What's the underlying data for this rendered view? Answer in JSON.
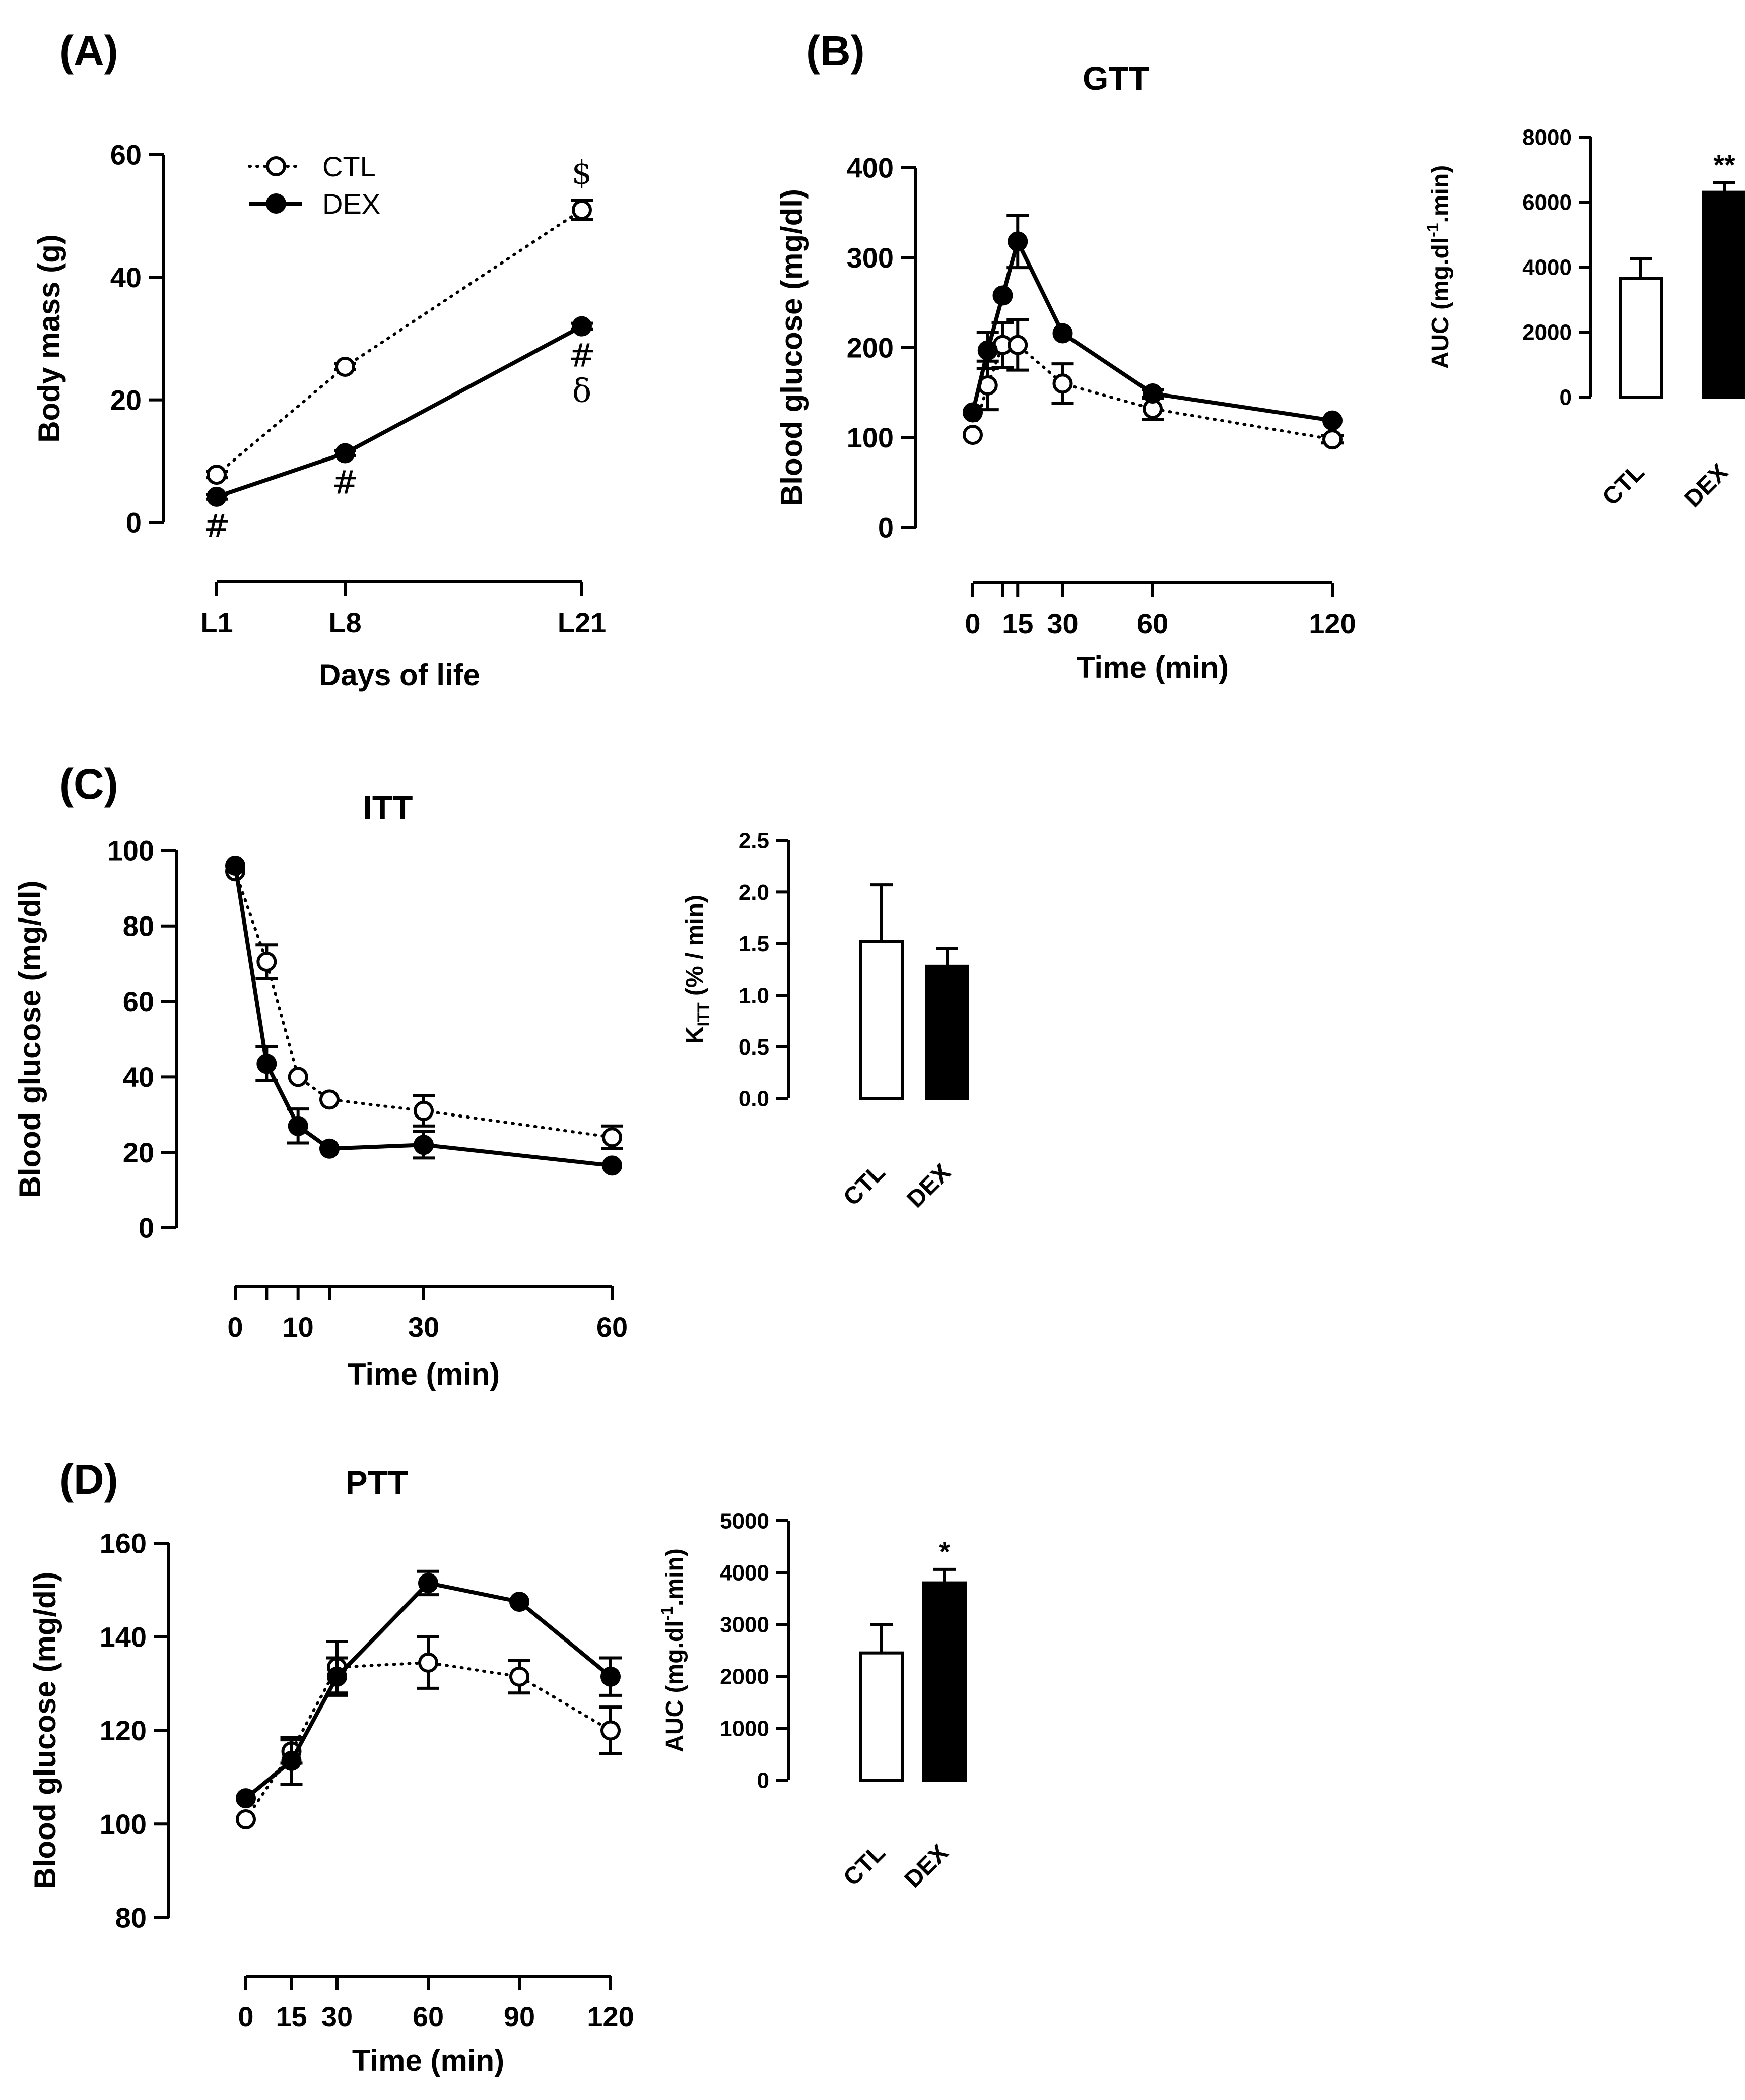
{
  "figure": {
    "legend": {
      "ctl": "CTL",
      "dex": "DEX"
    }
  },
  "chart_data": [
    {
      "panel": "(A)",
      "type": "line",
      "title": "",
      "xlabel": "Days of life",
      "ylabel": "Body mass (g)",
      "categories": [
        "L1",
        "L8",
        "L21"
      ],
      "x": [
        1,
        8,
        21
      ],
      "ylim": [
        0,
        60
      ],
      "yticks": [
        0,
        20,
        40,
        60
      ],
      "legend_position": "top-left",
      "series": [
        {
          "name": "CTL",
          "style": "dotted-open",
          "values": [
            7.8,
            25.4,
            51.0
          ],
          "err": [
            0.5,
            0.5,
            1.6
          ]
        },
        {
          "name": "DEX",
          "style": "solid-filled",
          "values": [
            4.2,
            11.3,
            32.0
          ],
          "err": [
            0.4,
            0.4,
            0.5
          ]
        }
      ],
      "annotations": [
        {
          "x": 1,
          "y": 4.2,
          "text": "#",
          "anchor": "below"
        },
        {
          "x": 8,
          "y": 11.3,
          "text": "#",
          "anchor": "below"
        },
        {
          "x": 21,
          "y": 51.0,
          "text": "$",
          "anchor": "above"
        },
        {
          "x": 21,
          "y": 32.0,
          "text": "#",
          "anchor": "below"
        },
        {
          "x": 21,
          "y": 32.0,
          "text": "δ",
          "anchor": "below2"
        }
      ]
    },
    {
      "panel": "(B)",
      "type": "line",
      "title": "GTT",
      "xlabel": "Time (min)",
      "ylabel": "Blood glucose (mg/dl)",
      "x": [
        0,
        5,
        10,
        15,
        30,
        60,
        120
      ],
      "xtick_labels": [
        "0",
        "15",
        "30",
        "60",
        "120"
      ],
      "xtick_values": [
        0,
        15,
        30,
        60,
        120
      ],
      "xminor_ticks": [
        10
      ],
      "ylim": [
        0,
        400
      ],
      "yticks": [
        0,
        100,
        200,
        300,
        400
      ],
      "series": [
        {
          "name": "CTL",
          "style": "dotted-open",
          "values": [
            103,
            158,
            203,
            203,
            160,
            132,
            98
          ],
          "err": [
            0,
            27,
            25,
            28,
            22,
            12,
            4
          ]
        },
        {
          "name": "DEX",
          "style": "solid-filled",
          "values": [
            128,
            197,
            258,
            318,
            216,
            149,
            119
          ],
          "err": [
            0,
            20,
            0,
            29,
            0,
            4,
            0
          ]
        }
      ]
    },
    {
      "panel": "(B) inset",
      "type": "bar",
      "title": "",
      "xlabel": "",
      "ylabel": "AUC (mg.dl-1.min)",
      "ylabel_parts": [
        "AUC (mg.dl",
        "-1",
        ".min)"
      ],
      "categories": [
        "CTL",
        "DEX"
      ],
      "values": [
        3650,
        6300
      ],
      "err": [
        600,
        300
      ],
      "fills": [
        "#ffffff",
        "#000000"
      ],
      "ylim": [
        0,
        8000
      ],
      "yticks": [
        0,
        2000,
        4000,
        6000,
        8000
      ],
      "significance": {
        "DEX": "**"
      }
    },
    {
      "panel": "(C)",
      "type": "line",
      "title": "ITT",
      "xlabel": "Time (min)",
      "ylabel": "Blood glucose (mg/dl)",
      "x": [
        0,
        5,
        10,
        15,
        30,
        60
      ],
      "xtick_labels": [
        "0",
        "10",
        "30",
        "60"
      ],
      "xtick_values": [
        0,
        10,
        30,
        60
      ],
      "xminor_ticks": [
        5,
        15
      ],
      "ylim": [
        0,
        100
      ],
      "yticks": [
        0,
        20,
        40,
        60,
        80,
        100
      ],
      "series": [
        {
          "name": "CTL",
          "style": "dotted-open",
          "values": [
            94.5,
            70.5,
            40,
            34,
            31,
            24
          ],
          "err": [
            0,
            4.5,
            0,
            0,
            4,
            3
          ]
        },
        {
          "name": "DEX",
          "style": "solid-filled",
          "values": [
            96,
            43.5,
            27,
            21,
            22,
            16.5
          ],
          "err": [
            0,
            4.5,
            4.5,
            0,
            3.5,
            0
          ]
        }
      ]
    },
    {
      "panel": "(C) inset",
      "type": "bar",
      "title": "",
      "xlabel": "",
      "ylabel": "KITT (% / min)",
      "ylabel_parts": [
        "K",
        "ITT",
        " (% / min)"
      ],
      "categories": [
        "CTL",
        "DEX"
      ],
      "values": [
        1.52,
        1.28
      ],
      "err": [
        0.55,
        0.17
      ],
      "fills": [
        "#ffffff",
        "#000000"
      ],
      "ylim": [
        0,
        2.5
      ],
      "yticks": [
        0.0,
        0.5,
        1.0,
        1.5,
        2.0,
        2.5
      ],
      "ytick_labels": [
        "0.0",
        "0.5",
        "1.0",
        "1.5",
        "2.0",
        "2.5"
      ]
    },
    {
      "panel": "(D)",
      "type": "line",
      "title": "PTT",
      "xlabel": "Time (min)",
      "ylabel": "Blood glucose (mg/dl)",
      "x": [
        0,
        15,
        30,
        60,
        90,
        120
      ],
      "xtick_labels": [
        "0",
        "15",
        "30",
        "60",
        "90",
        "120"
      ],
      "xtick_values": [
        0,
        15,
        30,
        60,
        90,
        120
      ],
      "xminor_ticks": [],
      "ylim": [
        80,
        160
      ],
      "yticks": [
        80,
        100,
        120,
        140,
        160
      ],
      "series": [
        {
          "name": "CTL",
          "style": "dotted-open",
          "values": [
            101,
            115.5,
            133.5,
            134.5,
            131.5,
            120
          ],
          "err": [
            0,
            2.5,
            5.5,
            5.5,
            3.5,
            5
          ]
        },
        {
          "name": "DEX",
          "style": "solid-filled",
          "values": [
            105.5,
            113.5,
            131.5,
            151.5,
            147.5,
            131.5
          ],
          "err": [
            0,
            5,
            4,
            2.5,
            0,
            4
          ]
        }
      ]
    },
    {
      "panel": "(D) inset",
      "type": "bar",
      "title": "",
      "xlabel": "",
      "ylabel": "AUC (mg.dl-1.min)",
      "ylabel_parts": [
        "AUC (mg.dl",
        "-1",
        ".min)"
      ],
      "categories": [
        "CTL",
        "DEX"
      ],
      "values": [
        2450,
        3800
      ],
      "err": [
        540,
        260
      ],
      "fills": [
        "#ffffff",
        "#000000"
      ],
      "ylim": [
        0,
        5000
      ],
      "yticks": [
        0,
        1000,
        2000,
        3000,
        4000,
        5000
      ],
      "significance": {
        "DEX": "*"
      }
    }
  ]
}
